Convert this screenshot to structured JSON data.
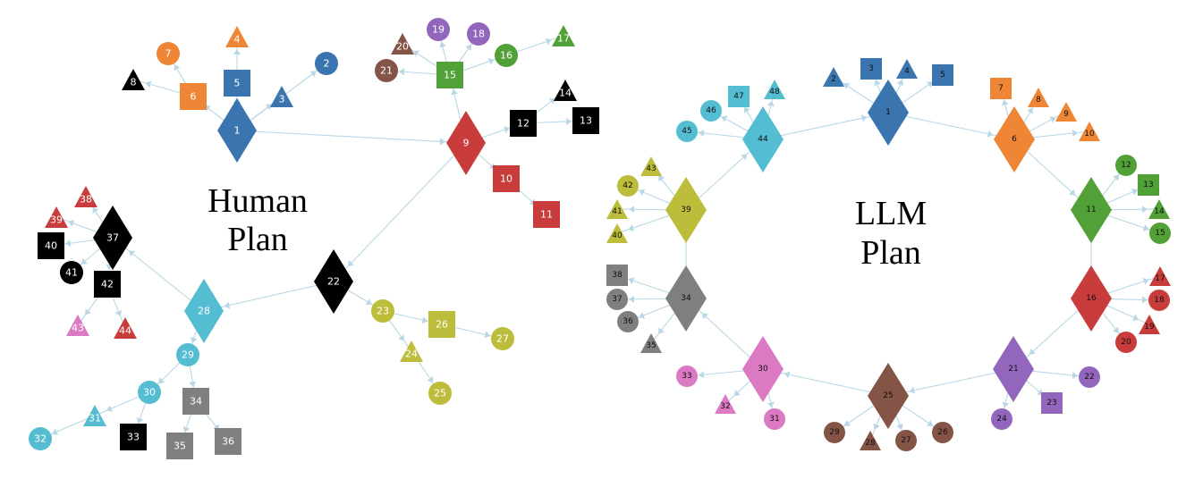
{
  "colors": {
    "blue": "#3a75b0",
    "orange": "#ee8636",
    "black": "#000000",
    "green": "#52a038",
    "purple": "#9366bd",
    "brown": "#845447",
    "red": "#c83c3b",
    "olive": "#bcbd3b",
    "cyan": "#55bdd1",
    "pink": "#db79c3",
    "gray": "#7f7f7f"
  },
  "panels": [
    {
      "id": "human",
      "title_lines": [
        "Human",
        "Plan"
      ],
      "label_style": "light",
      "nodes": [
        {
          "id": "1",
          "shape": "diamond",
          "color": "blue"
        },
        {
          "id": "2",
          "shape": "circle",
          "color": "blue"
        },
        {
          "id": "3",
          "shape": "triangle",
          "color": "blue"
        },
        {
          "id": "4",
          "shape": "triangle",
          "color": "orange"
        },
        {
          "id": "5",
          "shape": "square",
          "color": "blue"
        },
        {
          "id": "6",
          "shape": "square",
          "color": "orange"
        },
        {
          "id": "7",
          "shape": "circle",
          "color": "orange"
        },
        {
          "id": "8",
          "shape": "triangle",
          "color": "black"
        },
        {
          "id": "9",
          "shape": "diamond",
          "color": "red"
        },
        {
          "id": "10",
          "shape": "square",
          "color": "red"
        },
        {
          "id": "11",
          "shape": "square",
          "color": "red"
        },
        {
          "id": "12",
          "shape": "square",
          "color": "black"
        },
        {
          "id": "13",
          "shape": "square",
          "color": "black"
        },
        {
          "id": "14",
          "shape": "triangle",
          "color": "black"
        },
        {
          "id": "15",
          "shape": "square",
          "color": "green"
        },
        {
          "id": "16",
          "shape": "circle",
          "color": "green"
        },
        {
          "id": "17",
          "shape": "triangle",
          "color": "green"
        },
        {
          "id": "18",
          "shape": "circle",
          "color": "purple"
        },
        {
          "id": "19",
          "shape": "circle",
          "color": "purple"
        },
        {
          "id": "20",
          "shape": "triangle",
          "color": "brown"
        },
        {
          "id": "21",
          "shape": "circle",
          "color": "brown"
        },
        {
          "id": "22",
          "shape": "diamond",
          "color": "black"
        },
        {
          "id": "23",
          "shape": "circle",
          "color": "olive"
        },
        {
          "id": "24",
          "shape": "triangle",
          "color": "olive"
        },
        {
          "id": "25",
          "shape": "circle",
          "color": "olive"
        },
        {
          "id": "26",
          "shape": "square",
          "color": "olive"
        },
        {
          "id": "27",
          "shape": "circle",
          "color": "olive"
        },
        {
          "id": "28",
          "shape": "diamond",
          "color": "cyan"
        },
        {
          "id": "29",
          "shape": "circle",
          "color": "cyan"
        },
        {
          "id": "30",
          "shape": "circle",
          "color": "cyan"
        },
        {
          "id": "31",
          "shape": "triangle",
          "color": "cyan"
        },
        {
          "id": "32",
          "shape": "circle",
          "color": "cyan"
        },
        {
          "id": "33",
          "shape": "square",
          "color": "black"
        },
        {
          "id": "34",
          "shape": "square",
          "color": "gray"
        },
        {
          "id": "35",
          "shape": "square",
          "color": "gray"
        },
        {
          "id": "36",
          "shape": "square",
          "color": "gray"
        },
        {
          "id": "37",
          "shape": "diamond",
          "color": "black"
        },
        {
          "id": "38",
          "shape": "triangle",
          "color": "red"
        },
        {
          "id": "39",
          "shape": "triangle",
          "color": "red"
        },
        {
          "id": "40",
          "shape": "square",
          "color": "black"
        },
        {
          "id": "41",
          "shape": "circle",
          "color": "black"
        },
        {
          "id": "42",
          "shape": "square",
          "color": "black"
        },
        {
          "id": "43",
          "shape": "triangle",
          "color": "pink"
        },
        {
          "id": "44",
          "shape": "triangle",
          "color": "red"
        }
      ],
      "edges": [
        [
          "1",
          "2"
        ],
        [
          "1",
          "3"
        ],
        [
          "1",
          "5"
        ],
        [
          "5",
          "4"
        ],
        [
          "1",
          "6"
        ],
        [
          "6",
          "7"
        ],
        [
          "6",
          "8"
        ],
        [
          "1",
          "9"
        ],
        [
          "9",
          "10"
        ],
        [
          "10",
          "11"
        ],
        [
          "9",
          "12"
        ],
        [
          "12",
          "13"
        ],
        [
          "12",
          "14"
        ],
        [
          "9",
          "15"
        ],
        [
          "15",
          "16"
        ],
        [
          "16",
          "17"
        ],
        [
          "15",
          "18"
        ],
        [
          "15",
          "19"
        ],
        [
          "15",
          "20"
        ],
        [
          "15",
          "21"
        ],
        [
          "9",
          "22"
        ],
        [
          "22",
          "23"
        ],
        [
          "23",
          "24"
        ],
        [
          "24",
          "25"
        ],
        [
          "23",
          "26"
        ],
        [
          "26",
          "27"
        ],
        [
          "22",
          "28"
        ],
        [
          "28",
          "29"
        ],
        [
          "29",
          "30"
        ],
        [
          "30",
          "31"
        ],
        [
          "31",
          "32"
        ],
        [
          "30",
          "33"
        ],
        [
          "29",
          "34"
        ],
        [
          "34",
          "35"
        ],
        [
          "34",
          "36"
        ],
        [
          "28",
          "37"
        ],
        [
          "37",
          "38"
        ],
        [
          "37",
          "39"
        ],
        [
          "37",
          "40"
        ],
        [
          "37",
          "41"
        ],
        [
          "37",
          "42"
        ],
        [
          "42",
          "43"
        ],
        [
          "42",
          "44"
        ]
      ]
    },
    {
      "id": "llm",
      "title_lines": [
        "LLM",
        "Plan"
      ],
      "label_style": "dark",
      "nodes": [
        {
          "id": "1",
          "shape": "diamond",
          "color": "blue"
        },
        {
          "id": "2",
          "shape": "triangle",
          "color": "blue"
        },
        {
          "id": "3",
          "shape": "square",
          "color": "blue"
        },
        {
          "id": "4",
          "shape": "triangle",
          "color": "blue"
        },
        {
          "id": "5",
          "shape": "square",
          "color": "blue"
        },
        {
          "id": "6",
          "shape": "diamond",
          "color": "orange"
        },
        {
          "id": "7",
          "shape": "square",
          "color": "orange"
        },
        {
          "id": "8",
          "shape": "triangle",
          "color": "orange"
        },
        {
          "id": "9",
          "shape": "triangle",
          "color": "orange"
        },
        {
          "id": "10",
          "shape": "triangle",
          "color": "orange"
        },
        {
          "id": "11",
          "shape": "diamond",
          "color": "green"
        },
        {
          "id": "12",
          "shape": "circle",
          "color": "green"
        },
        {
          "id": "13",
          "shape": "square",
          "color": "green"
        },
        {
          "id": "14",
          "shape": "triangle",
          "color": "green"
        },
        {
          "id": "15",
          "shape": "circle",
          "color": "green"
        },
        {
          "id": "16",
          "shape": "diamond",
          "color": "red"
        },
        {
          "id": "17",
          "shape": "triangle",
          "color": "red"
        },
        {
          "id": "18",
          "shape": "circle",
          "color": "red"
        },
        {
          "id": "19",
          "shape": "triangle",
          "color": "red"
        },
        {
          "id": "20",
          "shape": "circle",
          "color": "red"
        },
        {
          "id": "21",
          "shape": "diamond",
          "color": "purple"
        },
        {
          "id": "22",
          "shape": "circle",
          "color": "purple"
        },
        {
          "id": "23",
          "shape": "square",
          "color": "purple"
        },
        {
          "id": "24",
          "shape": "circle",
          "color": "purple"
        },
        {
          "id": "25",
          "shape": "diamond",
          "color": "brown"
        },
        {
          "id": "26",
          "shape": "circle",
          "color": "brown"
        },
        {
          "id": "27",
          "shape": "circle",
          "color": "brown"
        },
        {
          "id": "28",
          "shape": "triangle",
          "color": "brown"
        },
        {
          "id": "29",
          "shape": "circle",
          "color": "brown"
        },
        {
          "id": "30",
          "shape": "diamond",
          "color": "pink"
        },
        {
          "id": "31",
          "shape": "circle",
          "color": "pink"
        },
        {
          "id": "32",
          "shape": "triangle",
          "color": "pink"
        },
        {
          "id": "33",
          "shape": "circle",
          "color": "pink"
        },
        {
          "id": "34",
          "shape": "diamond",
          "color": "gray"
        },
        {
          "id": "35",
          "shape": "triangle",
          "color": "gray"
        },
        {
          "id": "36",
          "shape": "circle",
          "color": "gray"
        },
        {
          "id": "37",
          "shape": "circle",
          "color": "gray"
        },
        {
          "id": "38",
          "shape": "square",
          "color": "gray"
        },
        {
          "id": "39",
          "shape": "diamond",
          "color": "olive"
        },
        {
          "id": "40",
          "shape": "triangle",
          "color": "olive"
        },
        {
          "id": "41",
          "shape": "triangle",
          "color": "olive"
        },
        {
          "id": "42",
          "shape": "circle",
          "color": "olive"
        },
        {
          "id": "43",
          "shape": "triangle",
          "color": "olive"
        },
        {
          "id": "44",
          "shape": "diamond",
          "color": "cyan"
        },
        {
          "id": "45",
          "shape": "circle",
          "color": "cyan"
        },
        {
          "id": "46",
          "shape": "circle",
          "color": "cyan"
        },
        {
          "id": "47",
          "shape": "square",
          "color": "cyan"
        },
        {
          "id": "48",
          "shape": "triangle",
          "color": "cyan"
        }
      ],
      "edges": [
        [
          "1",
          "2"
        ],
        [
          "1",
          "3"
        ],
        [
          "1",
          "4"
        ],
        [
          "1",
          "5"
        ],
        [
          "1",
          "6"
        ],
        [
          "6",
          "7"
        ],
        [
          "6",
          "8"
        ],
        [
          "6",
          "9"
        ],
        [
          "6",
          "10"
        ],
        [
          "6",
          "11"
        ],
        [
          "11",
          "12"
        ],
        [
          "11",
          "13"
        ],
        [
          "11",
          "14"
        ],
        [
          "11",
          "15"
        ],
        [
          "11",
          "16"
        ],
        [
          "16",
          "17"
        ],
        [
          "16",
          "18"
        ],
        [
          "16",
          "19"
        ],
        [
          "16",
          "20"
        ],
        [
          "16",
          "21"
        ],
        [
          "21",
          "22"
        ],
        [
          "21",
          "23"
        ],
        [
          "21",
          "24"
        ],
        [
          "21",
          "25"
        ],
        [
          "25",
          "26"
        ],
        [
          "25",
          "27"
        ],
        [
          "25",
          "28"
        ],
        [
          "25",
          "29"
        ],
        [
          "25",
          "30"
        ],
        [
          "30",
          "31"
        ],
        [
          "30",
          "32"
        ],
        [
          "30",
          "33"
        ],
        [
          "30",
          "34"
        ],
        [
          "34",
          "35"
        ],
        [
          "34",
          "36"
        ],
        [
          "34",
          "37"
        ],
        [
          "34",
          "38"
        ],
        [
          "34",
          "39"
        ],
        [
          "39",
          "40"
        ],
        [
          "39",
          "41"
        ],
        [
          "39",
          "42"
        ],
        [
          "39",
          "43"
        ],
        [
          "39",
          "44"
        ],
        [
          "44",
          "45"
        ],
        [
          "44",
          "46"
        ],
        [
          "44",
          "47"
        ],
        [
          "44",
          "48"
        ],
        [
          "44",
          "1"
        ]
      ]
    }
  ]
}
